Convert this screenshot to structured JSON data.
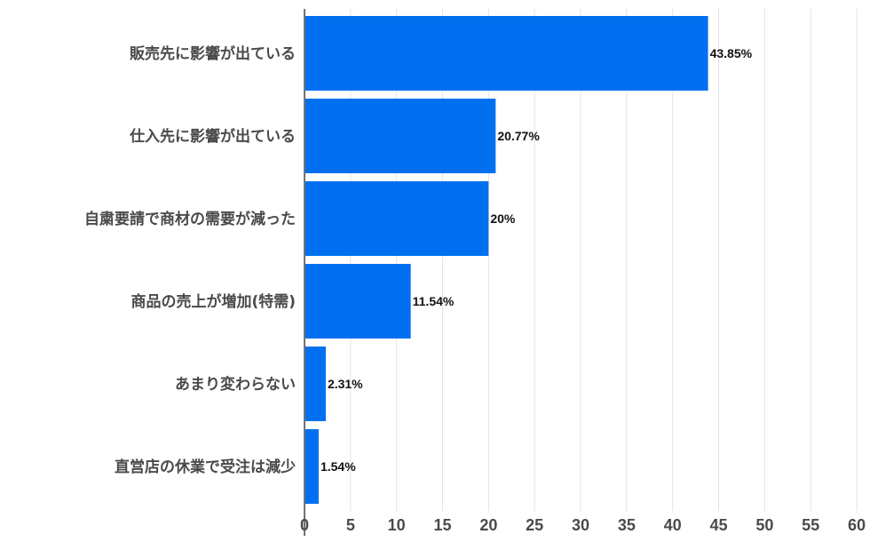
{
  "chart_data": {
    "type": "bar",
    "orientation": "horizontal",
    "categories": [
      "販売先に影響が出ている",
      "仕入先に影響が出ている",
      "自粛要請で商材の需要が減った",
      "商品の売上が増加(特需)",
      "あまり変わらない",
      "直営店の休業で受注は減少"
    ],
    "values": [
      43.85,
      20.77,
      20,
      11.54,
      2.31,
      1.54
    ],
    "data_labels": [
      "43.85%",
      "20.77%",
      "20%",
      "11.54%",
      "2.31%",
      "1.54%"
    ],
    "title": "",
    "xlabel": "",
    "ylabel": "",
    "xlim": [
      0,
      60
    ],
    "xticks": [
      0,
      5,
      10,
      15,
      20,
      25,
      30,
      35,
      40,
      45,
      50,
      55,
      60
    ],
    "grid": true,
    "legend": "none",
    "bar_color": "#0070f0"
  }
}
